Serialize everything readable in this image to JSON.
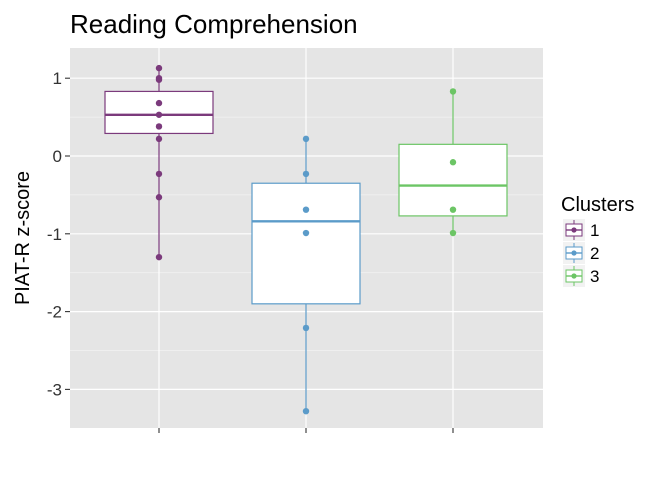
{
  "chart_data": {
    "type": "boxplot",
    "title": "Reading Comprehension",
    "xlabel": "",
    "ylabel": "PIAT-R z-score",
    "ylim": [
      -3.5,
      1.3
    ],
    "yticks": [
      "1",
      "0",
      "-1",
      "-2",
      "-3"
    ],
    "ytick_values": [
      1,
      0,
      -1,
      -2,
      -3
    ],
    "grid": true,
    "legend": {
      "title": "Clusters",
      "position": "right"
    },
    "series": [
      {
        "name": "1",
        "color": "#7b3a7c",
        "box": {
          "min": -1.3,
          "q1": 0.29,
          "median": 0.53,
          "q3": 0.83,
          "max": 1.13
        },
        "points": [
          1.13,
          1.0,
          0.98,
          0.68,
          0.53,
          0.38,
          0.22,
          -0.23,
          -0.53,
          -1.3
        ]
      },
      {
        "name": "2",
        "color": "#5b9bc9",
        "box": {
          "min": -3.28,
          "q1": -1.9,
          "median": -0.84,
          "q3": -0.35,
          "max": 0.22
        },
        "points": [
          0.22,
          -0.23,
          -0.69,
          -0.99,
          -2.21,
          -3.28
        ]
      },
      {
        "name": "3",
        "color": "#6cc565",
        "box": {
          "min": -0.99,
          "q1": -0.77,
          "median": -0.38,
          "q3": 0.15,
          "max": 0.83
        },
        "points": [
          0.83,
          -0.08,
          -0.69,
          -0.99
        ]
      }
    ]
  }
}
